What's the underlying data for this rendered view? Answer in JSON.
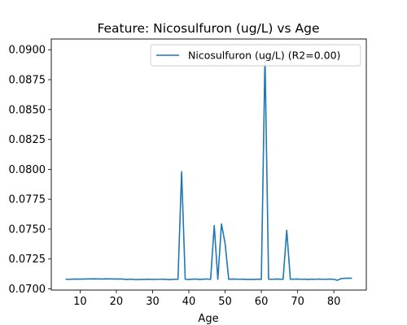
{
  "chart_data": {
    "type": "line",
    "title": "Feature: Nicosulfuron (ug/L) vs Age",
    "xlabel": "Age",
    "ylabel": "",
    "xlim": [
      2.05,
      88.95
    ],
    "ylim": [
      0.0699,
      0.0909
    ],
    "x_ticks": [
      "10",
      "20",
      "30",
      "40",
      "50",
      "60",
      "70",
      "80"
    ],
    "x_tick_values": [
      10,
      20,
      30,
      40,
      50,
      60,
      70,
      80
    ],
    "y_ticks": [
      "0.0700",
      "0.0725",
      "0.0750",
      "0.0775",
      "0.0800",
      "0.0825",
      "0.0850",
      "0.0875",
      "0.0900"
    ],
    "y_tick_values": [
      0.07,
      0.0725,
      0.075,
      0.0775,
      0.08,
      0.0825,
      0.085,
      0.0875,
      0.09
    ],
    "legend_position": "top-right",
    "grid": false,
    "series": [
      {
        "name": "Nicosulfuron (ug/L) (R2=0.00)",
        "color": "#1f77b4",
        "x": [
          6,
          7,
          8,
          9,
          10,
          11,
          12,
          13,
          14,
          15,
          16,
          17,
          18,
          19,
          20,
          21,
          22,
          23,
          24,
          25,
          26,
          27,
          28,
          29,
          30,
          31,
          32,
          33,
          34,
          35,
          36,
          37,
          38,
          39,
          40,
          41,
          42,
          43,
          44,
          45,
          46,
          47,
          48,
          49,
          50,
          51,
          52,
          53,
          54,
          55,
          56,
          57,
          58,
          59,
          60,
          61,
          62,
          63,
          64,
          65,
          66,
          67,
          68,
          69,
          70,
          71,
          72,
          73,
          74,
          75,
          76,
          77,
          78,
          79,
          80,
          81,
          82,
          83,
          84,
          85
        ],
        "values": [
          0.0708,
          0.0708,
          0.07081,
          0.07082,
          0.07081,
          0.07082,
          0.07083,
          0.07083,
          0.07084,
          0.07083,
          0.07082,
          0.07084,
          0.07083,
          0.07083,
          0.07082,
          0.07083,
          0.07081,
          0.07079,
          0.07081,
          0.07079,
          0.07078,
          0.0708,
          0.07079,
          0.07081,
          0.07079,
          0.0708,
          0.0708,
          0.07081,
          0.07079,
          0.07078,
          0.0708,
          0.0708,
          0.0798,
          0.0708,
          0.07079,
          0.07081,
          0.07082,
          0.07079,
          0.07081,
          0.07082,
          0.0708,
          0.0753,
          0.0708,
          0.07543,
          0.0738,
          0.0708,
          0.07082,
          0.07081,
          0.0708,
          0.07081,
          0.07079,
          0.0708,
          0.07079,
          0.07081,
          0.0708,
          0.0895,
          0.07081,
          0.0708,
          0.07082,
          0.07081,
          0.0708,
          0.0749,
          0.0708,
          0.07081,
          0.07082,
          0.0708,
          0.07081,
          0.07079,
          0.07081,
          0.0708,
          0.07082,
          0.0708,
          0.0708,
          0.07082,
          0.0708,
          0.07072,
          0.07086,
          0.07088,
          0.07089,
          0.07089
        ]
      }
    ]
  }
}
